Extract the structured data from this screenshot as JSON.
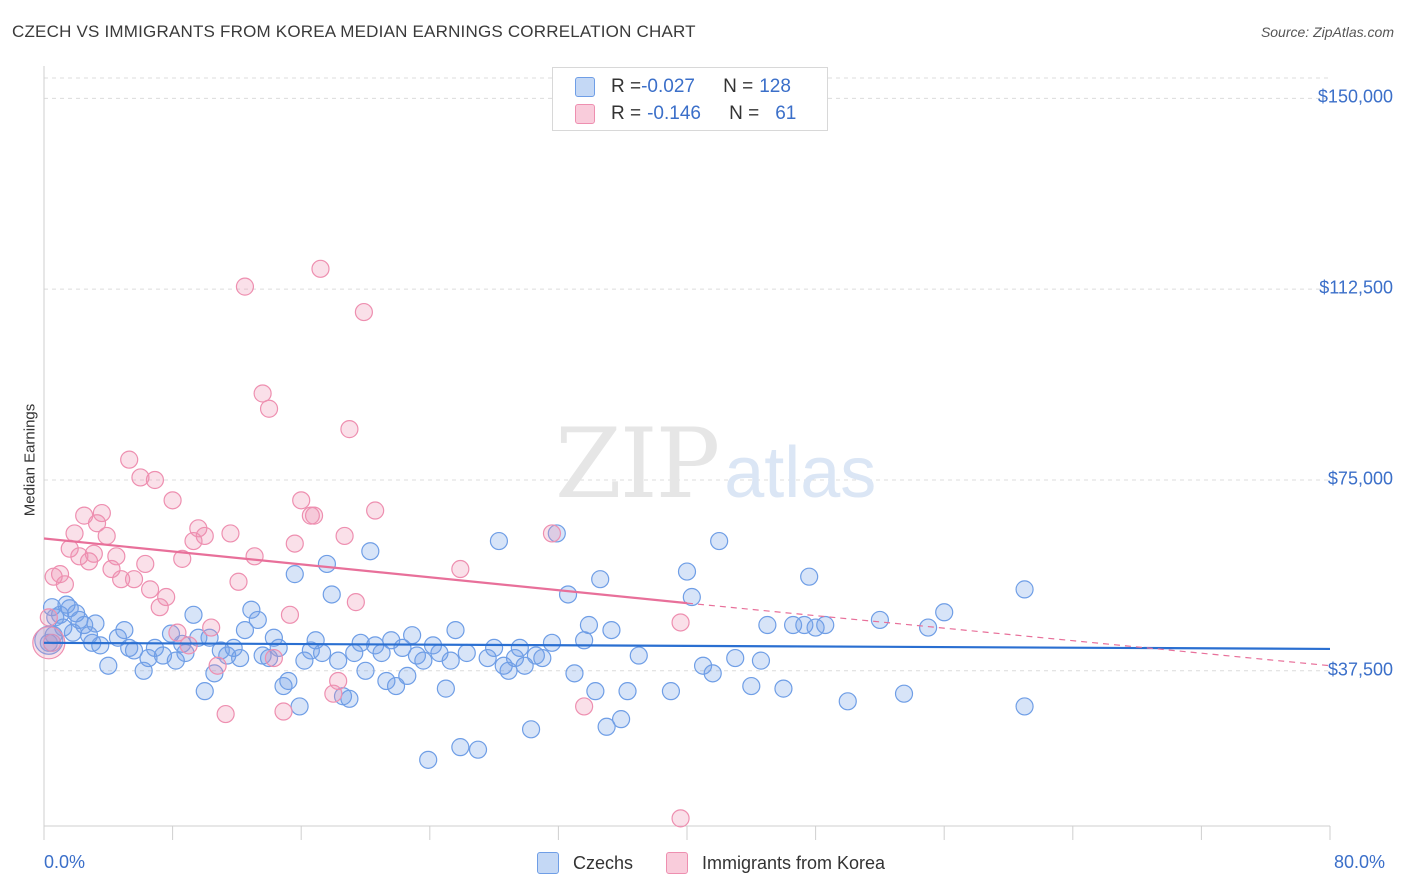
{
  "header": {
    "title": "CZECH VS IMMIGRANTS FROM KOREA MEDIAN EARNINGS CORRELATION CHART",
    "source": "Source: ZipAtlas.com"
  },
  "watermark": {
    "zip": "ZIP",
    "atlas": "atlas"
  },
  "legend": {
    "rows": [
      {
        "r_label": "R = ",
        "r_value": "-0.027",
        "n_label": "N = ",
        "n_value": "128",
        "color": "#6f9ee6"
      },
      {
        "r_label": "R = ",
        "r_value": "-0.146",
        "n_label": "N = ",
        "n_value": "61",
        "color": "#ee8fb0"
      }
    ]
  },
  "bottom_legend": {
    "czechs": "Czechs",
    "korea": "Immigrants from Korea"
  },
  "colors": {
    "blue": "#6f9ee6",
    "pink": "#ee8fb0",
    "blue_line": "#2a6fd1",
    "pink_line": "#e8709a",
    "tick_text": "#3b6fc9"
  },
  "chart_data": {
    "type": "scatter",
    "title": "CZECH VS IMMIGRANTS FROM KOREA MEDIAN EARNINGS CORRELATION CHART",
    "ylabel": "Median Earnings",
    "xlabel": "",
    "xlim": [
      0,
      80
    ],
    "ylim": [
      7000,
      154000
    ],
    "x_tick_labels": [
      "0.0%",
      "80.0%"
    ],
    "y_ticks": [
      37500,
      75000,
      112500,
      150000
    ],
    "y_tick_labels": [
      "$37,500",
      "$75,000",
      "$112,500",
      "$150,000"
    ],
    "grid": "horizontal dashed",
    "legend_position": "top-center",
    "series": [
      {
        "name": "Czechs",
        "color": "#6f9ee6",
        "trend": {
          "x": [
            0,
            80
          ],
          "y": [
            43000,
            41800
          ]
        },
        "points": [
          [
            0.5,
            50000
          ],
          [
            0.7,
            48000
          ],
          [
            1.0,
            48500
          ],
          [
            1.4,
            50500
          ],
          [
            1.6,
            49800
          ],
          [
            2.0,
            48800
          ],
          [
            2.5,
            46500
          ],
          [
            2.8,
            44500
          ],
          [
            3.2,
            46800
          ],
          [
            3.5,
            42500
          ],
          [
            4.0,
            38500
          ],
          [
            4.6,
            44000
          ],
          [
            5.0,
            45500
          ],
          [
            5.3,
            42000
          ],
          [
            5.6,
            41500
          ],
          [
            6.2,
            37500
          ],
          [
            6.5,
            40000
          ],
          [
            6.9,
            42000
          ],
          [
            7.4,
            40500
          ],
          [
            7.9,
            44800
          ],
          [
            8.2,
            39500
          ],
          [
            8.6,
            42800
          ],
          [
            8.8,
            41000
          ],
          [
            9.3,
            48500
          ],
          [
            9.6,
            44000
          ],
          [
            10.0,
            33500
          ],
          [
            10.3,
            44000
          ],
          [
            10.6,
            37000
          ],
          [
            11.0,
            41500
          ],
          [
            11.4,
            40500
          ],
          [
            11.8,
            42000
          ],
          [
            12.2,
            40000
          ],
          [
            12.5,
            45500
          ],
          [
            12.9,
            49500
          ],
          [
            13.3,
            47500
          ],
          [
            13.6,
            40500
          ],
          [
            14.0,
            40000
          ],
          [
            14.3,
            44000
          ],
          [
            14.6,
            42000
          ],
          [
            14.9,
            34500
          ],
          [
            15.2,
            35500
          ],
          [
            15.6,
            56500
          ],
          [
            15.9,
            30500
          ],
          [
            16.2,
            39500
          ],
          [
            16.6,
            41500
          ],
          [
            16.9,
            43500
          ],
          [
            17.3,
            41000
          ],
          [
            17.6,
            58500
          ],
          [
            17.9,
            52500
          ],
          [
            18.3,
            39500
          ],
          [
            18.6,
            32500
          ],
          [
            19.0,
            32000
          ],
          [
            19.3,
            41000
          ],
          [
            19.7,
            43000
          ],
          [
            20.0,
            37500
          ],
          [
            20.3,
            61000
          ],
          [
            20.6,
            42500
          ],
          [
            21.0,
            41000
          ],
          [
            21.3,
            35500
          ],
          [
            21.6,
            43500
          ],
          [
            21.9,
            34500
          ],
          [
            22.3,
            42000
          ],
          [
            22.6,
            36500
          ],
          [
            22.9,
            44500
          ],
          [
            23.2,
            40500
          ],
          [
            23.6,
            39500
          ],
          [
            23.9,
            20000
          ],
          [
            24.2,
            42500
          ],
          [
            24.6,
            41000
          ],
          [
            25.0,
            34000
          ],
          [
            25.3,
            39500
          ],
          [
            25.6,
            45500
          ],
          [
            25.9,
            22500
          ],
          [
            26.3,
            41000
          ],
          [
            27.0,
            22000
          ],
          [
            27.6,
            40000
          ],
          [
            28.0,
            42000
          ],
          [
            28.3,
            63000
          ],
          [
            28.6,
            38500
          ],
          [
            28.9,
            37500
          ],
          [
            29.3,
            40000
          ],
          [
            29.6,
            42000
          ],
          [
            29.9,
            38500
          ],
          [
            30.3,
            26000
          ],
          [
            30.6,
            40500
          ],
          [
            31.0,
            40000
          ],
          [
            31.6,
            43000
          ],
          [
            31.9,
            64500
          ],
          [
            32.6,
            52500
          ],
          [
            33.0,
            37000
          ],
          [
            33.6,
            43500
          ],
          [
            33.9,
            46500
          ],
          [
            34.3,
            33500
          ],
          [
            34.6,
            55500
          ],
          [
            35.0,
            26500
          ],
          [
            35.3,
            45500
          ],
          [
            35.9,
            28000
          ],
          [
            36.3,
            33500
          ],
          [
            37.0,
            40500
          ],
          [
            39.0,
            33500
          ],
          [
            40.0,
            57000
          ],
          [
            40.3,
            52000
          ],
          [
            41.0,
            38500
          ],
          [
            41.6,
            37000
          ],
          [
            42.0,
            63000
          ],
          [
            43.0,
            40000
          ],
          [
            44.0,
            34500
          ],
          [
            44.6,
            39500
          ],
          [
            45.0,
            46500
          ],
          [
            46.0,
            34000
          ],
          [
            46.6,
            46500
          ],
          [
            47.3,
            46500
          ],
          [
            47.6,
            56000
          ],
          [
            48.0,
            46000
          ],
          [
            48.6,
            46500
          ],
          [
            50.0,
            31500
          ],
          [
            52.0,
            47500
          ],
          [
            53.5,
            33000
          ],
          [
            55.0,
            46000
          ],
          [
            56.0,
            49000
          ],
          [
            61.0,
            53500
          ],
          [
            61.0,
            30500
          ],
          [
            0.3,
            43000
          ],
          [
            0.6,
            44500
          ],
          [
            1.2,
            46000
          ],
          [
            1.8,
            45000
          ],
          [
            2.2,
            47500
          ],
          [
            3.0,
            43000
          ]
        ]
      },
      {
        "name": "Immigrants from Korea",
        "color": "#ee8fb0",
        "trend": {
          "x": [
            0,
            40
          ],
          "y": [
            63500,
            50800
          ]
        },
        "trend_dashed": {
          "x": [
            40,
            80
          ],
          "y": [
            50800,
            38500
          ]
        },
        "points": [
          [
            0.3,
            48000
          ],
          [
            0.6,
            56000
          ],
          [
            1.0,
            56500
          ],
          [
            1.3,
            54500
          ],
          [
            1.6,
            61500
          ],
          [
            1.9,
            64500
          ],
          [
            2.2,
            60000
          ],
          [
            2.5,
            68000
          ],
          [
            2.8,
            59000
          ],
          [
            3.1,
            60500
          ],
          [
            3.3,
            66500
          ],
          [
            3.6,
            68500
          ],
          [
            3.9,
            64000
          ],
          [
            4.2,
            57500
          ],
          [
            4.5,
            60000
          ],
          [
            4.8,
            55500
          ],
          [
            5.3,
            79000
          ],
          [
            5.6,
            55500
          ],
          [
            6.0,
            75500
          ],
          [
            6.3,
            58500
          ],
          [
            6.6,
            53500
          ],
          [
            6.9,
            75000
          ],
          [
            7.2,
            50000
          ],
          [
            7.6,
            52000
          ],
          [
            8.0,
            71000
          ],
          [
            8.3,
            45000
          ],
          [
            8.6,
            59500
          ],
          [
            9.0,
            42500
          ],
          [
            9.3,
            63000
          ],
          [
            9.6,
            65500
          ],
          [
            10.0,
            64000
          ],
          [
            10.4,
            46000
          ],
          [
            10.8,
            38500
          ],
          [
            11.3,
            29000
          ],
          [
            11.6,
            64500
          ],
          [
            12.1,
            55000
          ],
          [
            12.5,
            113000
          ],
          [
            13.1,
            60000
          ],
          [
            13.6,
            92000
          ],
          [
            14.0,
            89000
          ],
          [
            14.3,
            40000
          ],
          [
            14.9,
            29500
          ],
          [
            15.3,
            48500
          ],
          [
            15.6,
            62500
          ],
          [
            16.0,
            71000
          ],
          [
            16.6,
            68000
          ],
          [
            16.8,
            68000
          ],
          [
            17.2,
            116500
          ],
          [
            18.0,
            33000
          ],
          [
            18.3,
            35500
          ],
          [
            18.7,
            64000
          ],
          [
            19.0,
            85000
          ],
          [
            19.4,
            51000
          ],
          [
            19.9,
            108000
          ],
          [
            20.6,
            69000
          ],
          [
            25.9,
            57500
          ],
          [
            31.6,
            64500
          ],
          [
            33.6,
            30500
          ],
          [
            39.6,
            47000
          ],
          [
            39.6,
            8500
          ],
          [
            0.5,
            43000
          ]
        ]
      }
    ]
  }
}
